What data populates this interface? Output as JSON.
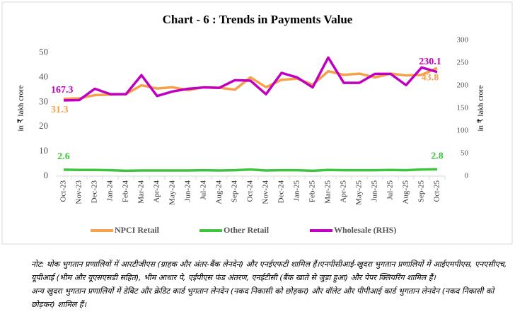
{
  "chart_data": {
    "type": "line",
    "title": "Chart - 6 : Trends in Payments Value",
    "y_label": "in ₹ lakh crore",
    "y2_label": "in ₹ lakh crore",
    "categories": [
      "Oct-23",
      "Nov-23",
      "Dec-23",
      "Jan-24",
      "Feb-24",
      "Mar-24",
      "Apr-24",
      "May-24",
      "Jun-24",
      "Jul-24",
      "Aug-24",
      "Sep-24",
      "Oct-24",
      "Nov-24",
      "Dec-24",
      "Jan-25",
      "Feb-25",
      "Mar-25",
      "Apr-25",
      "May-25",
      "Jun-25",
      "Jul-25",
      "Aug-25",
      "Sep-25",
      "Oct-25"
    ],
    "series": [
      {
        "name": "NPCI Retail",
        "color": "#f5a04b",
        "values": [
          31.3,
          31.5,
          32.8,
          33.0,
          33.2,
          36.8,
          35.5,
          36.0,
          34.8,
          36.0,
          35.8,
          35.0,
          40.0,
          36.0,
          39.0,
          39.5,
          37.0,
          42.5,
          41.0,
          41.5,
          40.0,
          41.5,
          40.8,
          41.0,
          43.8
        ]
      },
      {
        "name": "Other Retail",
        "color": "#3ec43e",
        "values": [
          2.6,
          2.5,
          2.5,
          2.4,
          2.2,
          2.3,
          2.3,
          2.3,
          2.3,
          2.4,
          2.3,
          2.4,
          2.7,
          2.3,
          2.4,
          2.4,
          2.2,
          2.5,
          2.4,
          2.4,
          2.4,
          2.5,
          2.4,
          2.7,
          2.8
        ]
      },
      {
        "name": "Wholesale (RHS)",
        "color": "#c000c0",
        "axis": "y2",
        "values": [
          167.3,
          168,
          193,
          181,
          181,
          223,
          177,
          187,
          193,
          196,
          195,
          212,
          211,
          181,
          228,
          218,
          196,
          262,
          206,
          206,
          226,
          226,
          201,
          240,
          230.1
        ]
      }
    ],
    "ylim": [
      0,
      55
    ],
    "yticks": [
      0,
      10,
      20,
      30,
      40,
      50
    ],
    "y2lim": [
      0,
      300
    ],
    "y2ticks": [
      0,
      50,
      100,
      150,
      200,
      250,
      300
    ],
    "grid": false
  },
  "notes": [
    "नोट: थोक भुगतान प्रणालियों में आरटीजीएस (ग्राहक और अंतर-बैंक लेनदेन) और एनईएफटी शामिल हैं।एनपीसीआई-खुदरा भुगतान प्रणालियों में आईएमपीएस, एनएसीएच, यूपीआई (भीम और यूएसएसडी सहित), भीम आधार पे, एईपीएस फंड अंतरण, एनईटीसी (बैंक खाते से जुड़ा हुआ) और पेपर क्लियरिंग शामिल हैं।",
    "अन्य खुदरा भुगतान प्रणालियों में डेबिट और क्रेडिट कार्ड भुगतान लेनदेन (नकद निकासी को छोड़कर) और वॉलेट और पीपीआई कार्ड भुगतान लेनदेन (नकद निकासी को छोड़कर) शामिल हैं।"
  ]
}
